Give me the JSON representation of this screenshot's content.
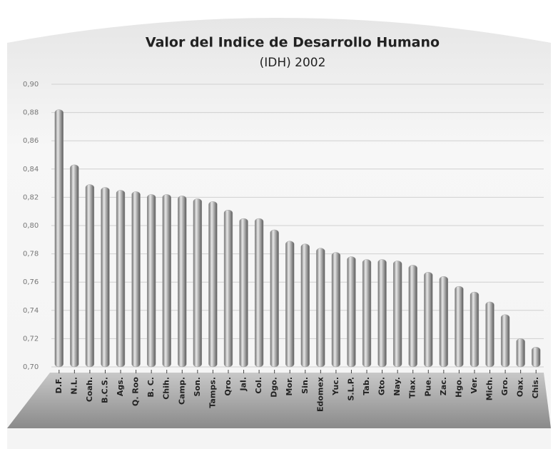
{
  "chart_data": {
    "type": "bar",
    "title": "Valor del Indice de Desarrollo Humano",
    "subtitle": "(IDH) 2002",
    "categories": [
      "D.F.",
      "N.L.",
      "Coah.",
      "B.C.S.",
      "Ags.",
      "Q. Roo",
      "B. C.",
      "Chih.",
      "Camp.",
      "Son.",
      "Tamps.",
      "Qro.",
      "Jal.",
      "Col.",
      "Dgo.",
      "Mor.",
      "Sin.",
      "Edomex",
      "Yuc.",
      "S.L.P.",
      "Tab.",
      "Gto.",
      "Nay.",
      "Tlax.",
      "Pue.",
      "Zac.",
      "Hgo.",
      "Ver.",
      "Mich.",
      "Gro.",
      "Oax.",
      "Chis."
    ],
    "values": [
      0.882,
      0.843,
      0.829,
      0.827,
      0.825,
      0.824,
      0.822,
      0.822,
      0.821,
      0.819,
      0.817,
      0.811,
      0.805,
      0.805,
      0.797,
      0.789,
      0.787,
      0.784,
      0.781,
      0.778,
      0.776,
      0.776,
      0.775,
      0.772,
      0.767,
      0.764,
      0.757,
      0.753,
      0.746,
      0.737,
      0.72,
      0.714
    ],
    "color": "#a0a0a0",
    "ylim": [
      0.7,
      0.9
    ],
    "yticks": [
      {
        "value": 0.7,
        "label": "0,70"
      },
      {
        "value": 0.72,
        "label": "0,72"
      },
      {
        "value": 0.74,
        "label": "0,74"
      },
      {
        "value": 0.76,
        "label": "0,76"
      },
      {
        "value": 0.78,
        "label": "0,78"
      },
      {
        "value": 0.8,
        "label": "0,80"
      },
      {
        "value": 0.82,
        "label": "0,82"
      },
      {
        "value": 0.84,
        "label": "0,84"
      },
      {
        "value": 0.86,
        "label": "0,86"
      },
      {
        "value": 0.88,
        "label": "0,88"
      },
      {
        "value": 0.9,
        "label": "0,90"
      }
    ],
    "grid": true
  }
}
